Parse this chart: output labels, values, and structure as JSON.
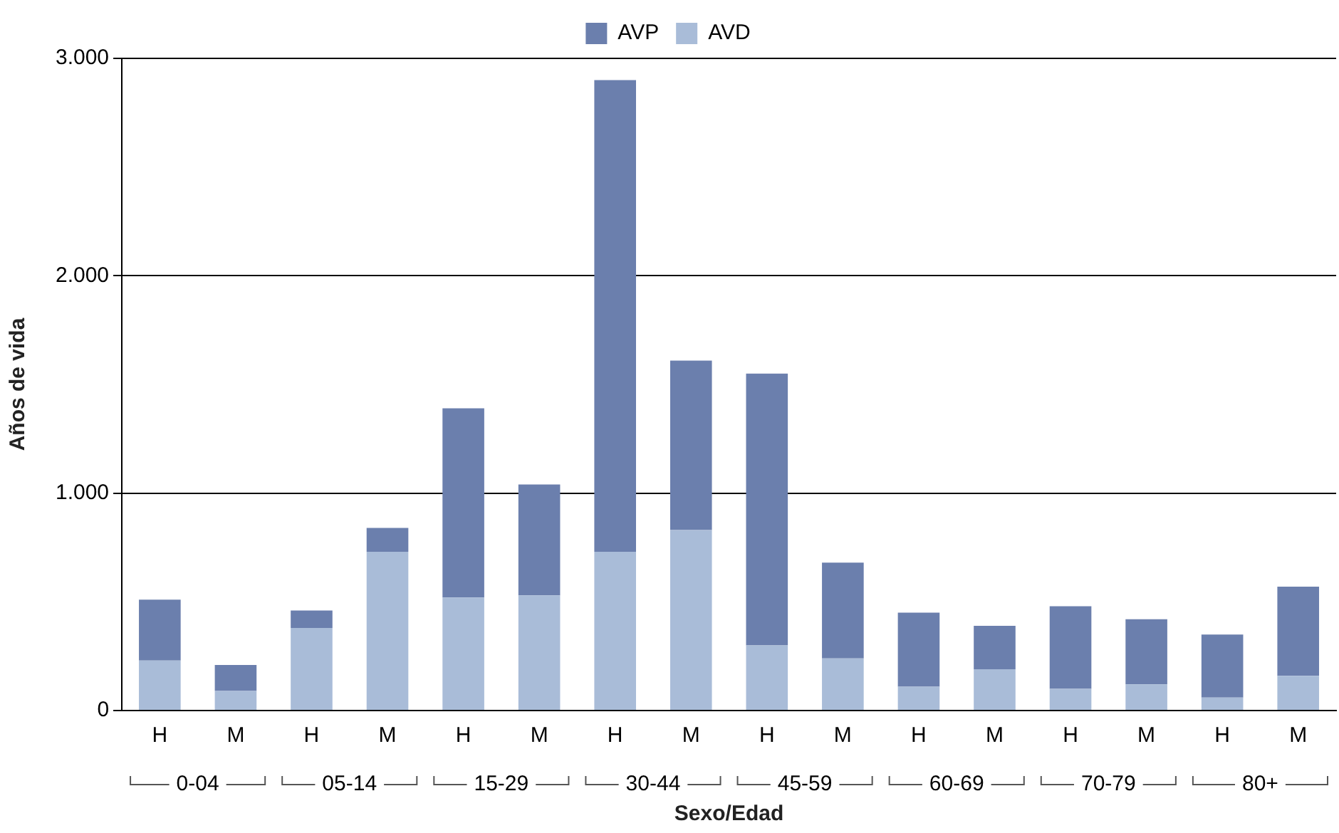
{
  "chart_data": {
    "type": "bar",
    "stacked": true,
    "xlabel": "Sexo/Edad",
    "ylabel": "Años de vida",
    "categories": [
      "H",
      "M",
      "H",
      "M",
      "H",
      "M",
      "H",
      "M",
      "H",
      "M",
      "H",
      "M",
      "H",
      "M",
      "H",
      "M"
    ],
    "series": [
      {
        "name": "AVD",
        "color": "#a9bcd8",
        "values": [
          230,
          90,
          380,
          730,
          520,
          530,
          730,
          830,
          300,
          240,
          110,
          190,
          100,
          120,
          60,
          160
        ]
      },
      {
        "name": "AVP",
        "color": "#6b7fad",
        "values": [
          280,
          120,
          80,
          110,
          870,
          510,
          2170,
          780,
          1250,
          440,
          340,
          200,
          380,
          300,
          290,
          410
        ]
      }
    ],
    "ylim": [
      0,
      3000
    ],
    "yticks": [
      0,
      {
        "value": 1000,
        "label": "1.000"
      },
      {
        "value": 2000,
        "label": "2.000"
      },
      {
        "value": 3000,
        "label": "3.000"
      }
    ],
    "grid": "y",
    "legend": "top",
    "annotations": [
      "0-04",
      "05-14",
      "15-29",
      "30-44",
      "45-59",
      "60-69",
      "70-79",
      "80+"
    ]
  }
}
